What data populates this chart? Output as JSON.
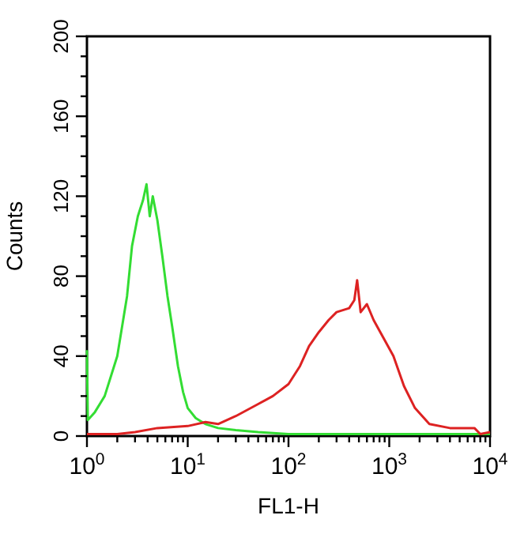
{
  "chart_data": {
    "type": "line",
    "xlabel": "FL1-H",
    "ylabel": "Counts",
    "log": "x",
    "grid": false,
    "marker": "none",
    "line_style": "solid",
    "xlim": [
      1,
      10000
    ],
    "ylim": [
      0,
      200
    ],
    "xticks": [
      {
        "value": 1,
        "label": "10$^{0}$"
      },
      {
        "value": 2,
        "label": null
      },
      {
        "value": 3,
        "label": null
      },
      {
        "value": 4,
        "label": null
      },
      {
        "value": 5,
        "label": null
      },
      {
        "value": 6,
        "label": null
      },
      {
        "value": 7,
        "label": null
      },
      {
        "value": 8,
        "label": null
      },
      {
        "value": 9,
        "label": null
      },
      {
        "value": 10,
        "label": "10$^{1}$"
      },
      {
        "value": 20,
        "label": null
      },
      {
        "value": 30,
        "label": null
      },
      {
        "value": 40,
        "label": null
      },
      {
        "value": 50,
        "label": null
      },
      {
        "value": 60,
        "label": null
      },
      {
        "value": 70,
        "label": null
      },
      {
        "value": 80,
        "label": null
      },
      {
        "value": 90,
        "label": null
      },
      {
        "value": 100,
        "label": "10$^{2}$"
      },
      {
        "value": 200,
        "label": null
      },
      {
        "value": 300,
        "label": null
      },
      {
        "value": 400,
        "label": null
      },
      {
        "value": 500,
        "label": null
      },
      {
        "value": 600,
        "label": null
      },
      {
        "value": 700,
        "label": null
      },
      {
        "value": 800,
        "label": null
      },
      {
        "value": 900,
        "label": null
      },
      {
        "value": 1000,
        "label": "10$^{3}$"
      },
      {
        "value": 2000,
        "label": null
      },
      {
        "value": 3000,
        "label": null
      },
      {
        "value": 4000,
        "label": null
      },
      {
        "value": 5000,
        "label": null
      },
      {
        "value": 6000,
        "label": null
      },
      {
        "value": 7000,
        "label": null
      },
      {
        "value": 8000,
        "label": null
      },
      {
        "value": 9000,
        "label": null
      },
      {
        "value": 10000,
        "label": "10$^{4}$"
      }
    ],
    "yticks": [
      0,
      {
        "value": 10,
        "label": null
      },
      {
        "value": 20,
        "label": null
      },
      {
        "value": 30,
        "label": null
      },
      40,
      {
        "value": 50,
        "label": null
      },
      {
        "value": 60,
        "label": null
      },
      {
        "value": 70,
        "label": null
      },
      80,
      {
        "value": 90,
        "label": null
      },
      {
        "value": 100,
        "label": null
      },
      {
        "value": 110,
        "label": null
      },
      120,
      {
        "value": 130,
        "label": null
      },
      {
        "value": 140,
        "label": null
      },
      {
        "value": 150,
        "label": null
      },
      160,
      {
        "value": 170,
        "label": null
      },
      {
        "value": 180,
        "label": null
      },
      {
        "value": 190,
        "label": null
      },
      200
    ],
    "series": [
      {
        "color": "#33dd33",
        "x": [
          1,
          1.02,
          1.2,
          1.5,
          2,
          2.5,
          2.8,
          3.2,
          3.6,
          3.9,
          4.2,
          4.5,
          5,
          5.6,
          6.3,
          7,
          8,
          9,
          10,
          12,
          15,
          20,
          30,
          50,
          100,
          300,
          1000,
          10000
        ],
        "values": [
          43,
          8,
          12,
          20,
          40,
          70,
          95,
          110,
          118,
          126,
          110,
          120,
          108,
          90,
          70,
          55,
          35,
          22,
          14,
          9,
          6,
          4,
          3,
          2,
          1,
          1,
          1,
          1
        ]
      },
      {
        "color": "#dd2222",
        "x": [
          1,
          2,
          3,
          5,
          10,
          15,
          20,
          30,
          50,
          70,
          100,
          130,
          160,
          200,
          250,
          300,
          400,
          450,
          480,
          520,
          600,
          700,
          900,
          1100,
          1400,
          1800,
          2500,
          4000,
          7000,
          8000,
          10000
        ],
        "values": [
          1,
          1,
          2,
          4,
          5,
          7,
          6,
          10,
          16,
          20,
          26,
          35,
          45,
          52,
          58,
          62,
          64,
          68,
          78,
          62,
          66,
          58,
          48,
          40,
          25,
          14,
          6,
          4,
          4,
          1,
          2
        ]
      }
    ]
  }
}
